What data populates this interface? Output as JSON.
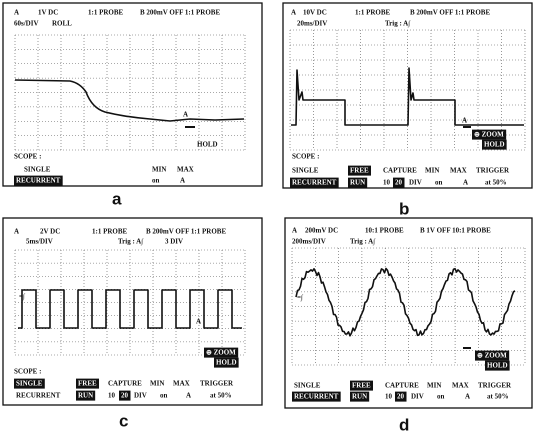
{
  "panels": [
    {
      "caption": "a",
      "header": [
        "A",
        "1V DC",
        "1:1 PROBE",
        "B 200mV OFF 1:1 PROBE"
      ],
      "timebase": "60s/DIV",
      "mode": "ROLL",
      "marker": "A",
      "hold": "HOLD",
      "scope": "SCOPE :",
      "single": "SINGLE",
      "recurrent": "RECURRENT",
      "min": "MIN",
      "max": "MAX",
      "on": "on",
      "source": "A"
    },
    {
      "caption": "b",
      "header": [
        "A",
        "10V DC",
        "1:1 PROBE",
        "B 200mV OFF 1:1 PROBE"
      ],
      "timebase": "20ms/DIV",
      "trigger": "Trig : A∫",
      "marker": "A",
      "zoom": "⊕ ZOOM",
      "hold": "HOLD",
      "scope": "SCOPE :",
      "single": "SINGLE",
      "free": "FREE",
      "capture": "CAPTURE",
      "min": "MIN",
      "max": "MAX",
      "trigger_label": "TRIGGER",
      "recurrent": "RECURRENT",
      "run": "RUN",
      "count": "10",
      "count_box": "20",
      "div": "DIV",
      "on": "on",
      "source": "A",
      "level": "at 50%"
    },
    {
      "caption": "c",
      "header": [
        "A",
        "2V DC",
        "1:1 PROBE",
        "B 200mV OFF 1:1 PROBE"
      ],
      "timebase": "5ms/DIV",
      "trigger": "Trig : A∫",
      "delay": "3 DIV",
      "probe_marker": "=∫",
      "marker": "A",
      "zoom": "⊕ ZOOM",
      "hold": "HOLD",
      "scope": "SCOPE :",
      "single": "SINGLE",
      "free": "FREE",
      "capture": "CAPTURE",
      "min": "MIN",
      "max": "MAX",
      "trigger_label": "TRIGGER",
      "recurrent": "RECURRENT",
      "run": "RUN",
      "count": "10",
      "count_box": "20",
      "div": "DIV",
      "on": "on",
      "source": "A",
      "level": "at 50%"
    },
    {
      "caption": "d",
      "header": [
        "A",
        "200mV DC",
        "10:1 PROBE",
        "B  1V OFF 10:1 PROBE"
      ],
      "timebase": "200ms/DIV",
      "trigger": "Trig : A∫",
      "probe_marker": "=∫",
      "zoom": "⊕ ZOOM",
      "hold": "HOLD",
      "single": "SINGLE",
      "free": "FREE",
      "capture": "CAPTURE",
      "min": "MIN",
      "max": "MAX",
      "trigger_label": "TRIGGER",
      "recurrent": "RECURRENT",
      "run": "RUN",
      "count": "10",
      "count_box": "20",
      "div": "DIV",
      "on": "on",
      "source": "A",
      "level": "at 50%"
    }
  ]
}
